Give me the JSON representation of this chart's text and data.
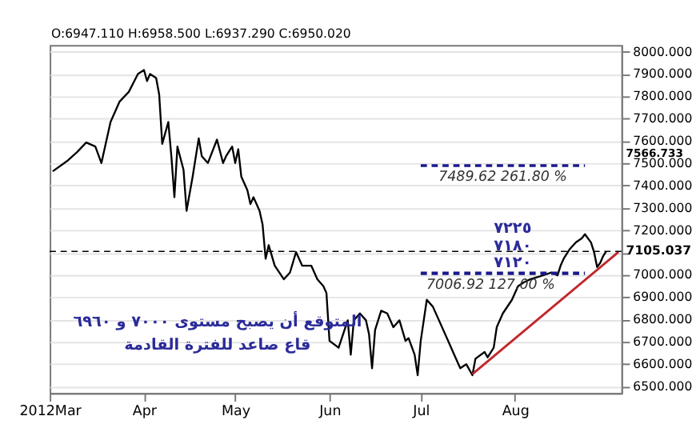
{
  "chart_data": {
    "type": "line",
    "x": [
      "2012-03-02",
      "2012-03-07",
      "2012-03-10",
      "2012-03-13",
      "2012-03-16",
      "2012-03-18",
      "2012-03-21",
      "2012-03-24",
      "2012-03-27",
      "2012-03-30",
      "2012-04-01",
      "2012-04-02",
      "2012-04-03",
      "2012-04-05",
      "2012-04-06",
      "2012-04-07",
      "2012-04-09",
      "2012-04-10",
      "2012-04-11",
      "2012-04-12",
      "2012-04-14",
      "2012-04-15",
      "2012-04-17",
      "2012-04-19",
      "2012-04-20",
      "2012-04-22",
      "2012-04-25",
      "2012-04-27",
      "2012-04-28",
      "2012-04-30",
      "2012-05-01",
      "2012-05-02",
      "2012-05-03",
      "2012-05-05",
      "2012-05-06",
      "2012-05-07",
      "2012-05-09",
      "2012-05-10",
      "2012-05-11",
      "2012-05-12",
      "2012-05-14",
      "2012-05-17",
      "2012-05-19",
      "2012-05-21",
      "2012-05-23",
      "2012-05-26",
      "2012-05-28",
      "2012-05-30",
      "2012-05-31",
      "2012-06-01",
      "2012-06-04",
      "2012-06-07",
      "2012-06-08",
      "2012-06-09",
      "2012-06-11",
      "2012-06-13",
      "2012-06-14",
      "2012-06-15",
      "2012-06-16",
      "2012-06-18",
      "2012-06-20",
      "2012-06-22",
      "2012-06-24",
      "2012-06-26",
      "2012-06-27",
      "2012-06-29",
      "2012-06-30",
      "2012-07-01",
      "2012-07-02",
      "2012-07-03",
      "2012-07-05",
      "2012-07-07",
      "2012-07-10",
      "2012-07-12",
      "2012-07-14",
      "2012-07-16",
      "2012-07-18",
      "2012-07-19",
      "2012-07-22",
      "2012-07-23",
      "2012-07-25",
      "2012-07-26",
      "2012-07-28",
      "2012-07-31",
      "2012-08-02",
      "2012-08-04",
      "2012-08-06",
      "2012-08-09",
      "2012-08-13",
      "2012-08-15",
      "2012-08-16",
      "2012-08-17",
      "2012-08-19",
      "2012-08-21",
      "2012-08-23",
      "2012-08-24",
      "2012-08-26",
      "2012-08-27",
      "2012-08-28",
      "2012-08-29",
      "2012-08-30",
      "2012-08-31"
    ],
    "series": [
      {
        "color": "#000000",
        "values": [
          7464,
          7513,
          7550,
          7593,
          7575,
          7501,
          7685,
          7777,
          7820,
          7900,
          7918,
          7869,
          7900,
          7882,
          7808,
          7587,
          7685,
          7532,
          7348,
          7575,
          7471,
          7287,
          7440,
          7612,
          7532,
          7501,
          7606,
          7501,
          7532,
          7575,
          7501,
          7563,
          7440,
          7379,
          7317,
          7348,
          7287,
          7225,
          7072,
          7133,
          7041,
          6980,
          7010,
          7102,
          7041,
          7041,
          6980,
          6949,
          6918,
          6704,
          6673,
          6796,
          6642,
          6796,
          6827,
          6796,
          6734,
          6581,
          6753,
          6839,
          6827,
          6765,
          6796,
          6704,
          6716,
          6642,
          6550,
          6704,
          6796,
          6888,
          6857,
          6796,
          6704,
          6642,
          6581,
          6599,
          6550,
          6624,
          6654,
          6630,
          6673,
          6765,
          6827,
          6888,
          6949,
          6967,
          6980,
          6992,
          7010,
          6998,
          7041,
          7072,
          7115,
          7145,
          7164,
          7182,
          7145,
          7102,
          7035,
          7053,
          7084,
          7105
        ]
      },
      {
        "type": "line",
        "x": [
          "2012-07-18",
          "2012-09-04"
        ],
        "values": [
          6555,
          7102
        ],
        "color": "#c0282d"
      },
      {
        "type": "line",
        "x": [
          "2012-07-01",
          "2012-08-24"
        ],
        "values": [
          7489.62,
          7489.62
        ],
        "color": "#1a1a8c",
        "line_style": "dashed"
      },
      {
        "type": "line",
        "x": [
          "2012-07-01",
          "2012-08-24"
        ],
        "values": [
          7006.92,
          7006.92
        ],
        "color": "#1a1a8c",
        "line_style": "dashed"
      }
    ],
    "xlim": [
      "2012-03-01",
      "2012-09-05"
    ],
    "xticks": [
      {
        "value": "2012-03-01",
        "label": "2012Mar"
      },
      {
        "value": "2012-04-01",
        "label": "Apr"
      },
      {
        "value": "2012-05-01",
        "label": "May"
      },
      {
        "value": "2012-06-01",
        "label": "Jun"
      },
      {
        "value": "2012-07-01",
        "label": "Jul"
      },
      {
        "value": "2012-08-01",
        "label": "Aug"
      }
    ],
    "ylim": [
      6470,
      8030
    ],
    "yticks": [
      {
        "value": 6500,
        "label": "6500.000"
      },
      {
        "value": 6600,
        "label": "6600.000"
      },
      {
        "value": 6700,
        "label": "6700.000"
      },
      {
        "value": 6800,
        "label": "6800.000"
      },
      {
        "value": 6900,
        "label": "6900.000"
      },
      {
        "value": 7000,
        "label": "7000.000"
      },
      {
        "value": 7100,
        "label": null
      },
      {
        "value": 7200,
        "label": "7200.000"
      },
      {
        "value": 7300,
        "label": "7300.000"
      },
      {
        "value": 7400,
        "label": "7400.000"
      },
      {
        "value": 7500,
        "label": "7500.000"
      },
      {
        "value": 7600,
        "label": "7600.000"
      },
      {
        "value": 7700,
        "label": "7700.000"
      },
      {
        "value": 7800,
        "label": "7800.000"
      },
      {
        "value": 7900,
        "label": "7900.000"
      },
      {
        "value": 8000,
        "label": "8000.000"
      }
    ],
    "grid": "y",
    "legend": false,
    "ref_lines": [
      {
        "axis": "y",
        "value": 7105.037,
        "label": "7105.037",
        "color": "#000000",
        "line_style": "dashed"
      }
    ],
    "annotations": [
      "O:6947.110 H:6958.500 L:6937.290 C:6950.020",
      "المتوقع أن يصبح مستوى ٧٠٠٠ و ٦٩٦٠",
      "قاع صاعد للفترة القادمة",
      "٧٢٢٥",
      "٧١٨٠",
      "٧١٢٠",
      {
        "text": "7489.62 261.80 %",
        "x": "2012-07-28",
        "y": 7489.62
      },
      {
        "text": "7006.92 127.00 %",
        "x": "2012-07-24",
        "y": 7006.92
      },
      "7566.733"
    ]
  }
}
